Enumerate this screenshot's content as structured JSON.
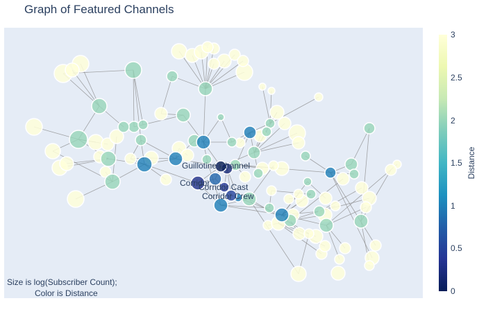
{
  "title": "Graph of Featured Channels",
  "note_lines": [
    "Size is log(Subscriber Count);",
    "Color is Distance"
  ],
  "colorbar": {
    "title": "Distance",
    "ticks": [
      "0",
      "0.5",
      "1",
      "1.5",
      "2",
      "2.5",
      "3"
    ],
    "range": [
      0,
      3
    ],
    "colors": [
      "#081d58",
      "#253494",
      "#225ea8",
      "#1d91c0",
      "#41b6c4",
      "#7fcdbb",
      "#c7e9b4",
      "#edf8b1",
      "#ffffd9"
    ]
  },
  "node_labels": [
    {
      "text": "Guillotine Channel"
    },
    {
      "text": "Corridor"
    },
    {
      "text": "Corridor Cast"
    },
    {
      "text": "Corridor Crew"
    }
  ]
}
